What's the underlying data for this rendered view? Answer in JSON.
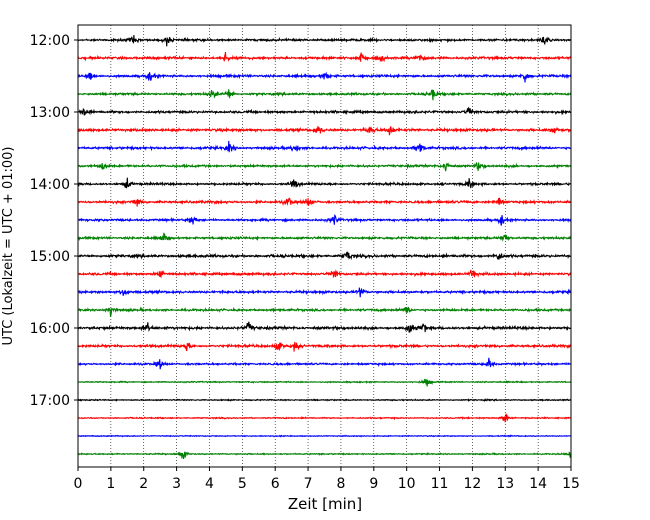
{
  "chart_data": {
    "type": "line",
    "title": "",
    "xlabel": "Zeit  [min]",
    "ylabel": "UTC (Lokalzeit = UTC + 01:00)",
    "xlim": [
      0,
      15
    ],
    "xticks": [
      "0",
      "1",
      "2",
      "3",
      "4",
      "5",
      "6",
      "7",
      "8",
      "9",
      "10",
      "11",
      "12",
      "13",
      "14",
      "15"
    ],
    "yticks": [
      "12:00",
      "13:00",
      "14:00",
      "15:00",
      "16:00",
      "17:00"
    ],
    "grid": "vertical-dotted",
    "colors": [
      "#000000",
      "#ff0000",
      "#0000ff",
      "#008000"
    ],
    "series": [
      {
        "start": "12:00",
        "color": "#000000",
        "events": [
          1.7,
          2.7,
          14.2
        ],
        "noise": 0.9
      },
      {
        "start": "12:15",
        "color": "#ff0000",
        "events": [
          4.5,
          8.6,
          9.2,
          10.4
        ],
        "noise": 1.0
      },
      {
        "start": "12:30",
        "color": "#0000ff",
        "events": [
          0.4,
          2.2,
          7.5,
          13.6
        ],
        "noise": 1.0
      },
      {
        "start": "12:45",
        "color": "#008000",
        "events": [
          4.1,
          4.6,
          10.8
        ],
        "noise": 0.9
      },
      {
        "start": "13:00",
        "color": "#000000",
        "events": [
          0.2,
          11.9
        ],
        "noise": 1.0
      },
      {
        "start": "13:15",
        "color": "#ff0000",
        "events": [
          7.3,
          8.9,
          9.5,
          14.5
        ],
        "noise": 1.1
      },
      {
        "start": "13:30",
        "color": "#0000ff",
        "events": [
          4.6,
          6.6,
          10.4
        ],
        "noise": 1.0
      },
      {
        "start": "13:45",
        "color": "#008000",
        "events": [
          0.8,
          11.2,
          12.2
        ],
        "noise": 0.9
      },
      {
        "start": "14:00",
        "color": "#000000",
        "events": [
          1.5,
          6.6,
          11.9
        ],
        "noise": 0.9
      },
      {
        "start": "14:15",
        "color": "#ff0000",
        "events": [
          1.8,
          6.4,
          7.0,
          12.8
        ],
        "noise": 1.0
      },
      {
        "start": "14:30",
        "color": "#0000ff",
        "events": [
          3.5,
          7.8,
          12.9
        ],
        "noise": 0.9
      },
      {
        "start": "14:45",
        "color": "#008000",
        "events": [
          2.6,
          13.0
        ],
        "noise": 0.9
      },
      {
        "start": "15:00",
        "color": "#000000",
        "events": [
          8.2,
          12.8
        ],
        "noise": 1.1
      },
      {
        "start": "15:15",
        "color": "#ff0000",
        "events": [
          2.5,
          7.8,
          12.0
        ],
        "noise": 1.0
      },
      {
        "start": "15:30",
        "color": "#0000ff",
        "events": [
          1.4,
          8.6
        ],
        "noise": 1.0
      },
      {
        "start": "15:45",
        "color": "#008000",
        "events": [
          1.0,
          10.0
        ],
        "noise": 0.9
      },
      {
        "start": "16:00",
        "color": "#000000",
        "events": [
          2.1,
          5.2,
          10.1,
          10.5
        ],
        "noise": 1.1
      },
      {
        "start": "16:15",
        "color": "#ff0000",
        "events": [
          3.3,
          6.1,
          6.6
        ],
        "noise": 1.0
      },
      {
        "start": "16:30",
        "color": "#0000ff",
        "events": [
          2.5,
          12.5
        ],
        "noise": 0.8
      },
      {
        "start": "16:45",
        "color": "#008000",
        "events": [
          10.6
        ],
        "noise": 0.5
      },
      {
        "start": "17:00",
        "color": "#000000",
        "events": [],
        "noise": 0.5
      },
      {
        "start": "17:15",
        "color": "#ff0000",
        "events": [
          13.0
        ],
        "noise": 0.5
      },
      {
        "start": "17:30",
        "color": "#0000ff",
        "events": [],
        "noise": 0.4
      },
      {
        "start": "17:45",
        "color": "#008000",
        "events": [
          3.2,
          15.0
        ],
        "noise": 0.5
      }
    ]
  }
}
